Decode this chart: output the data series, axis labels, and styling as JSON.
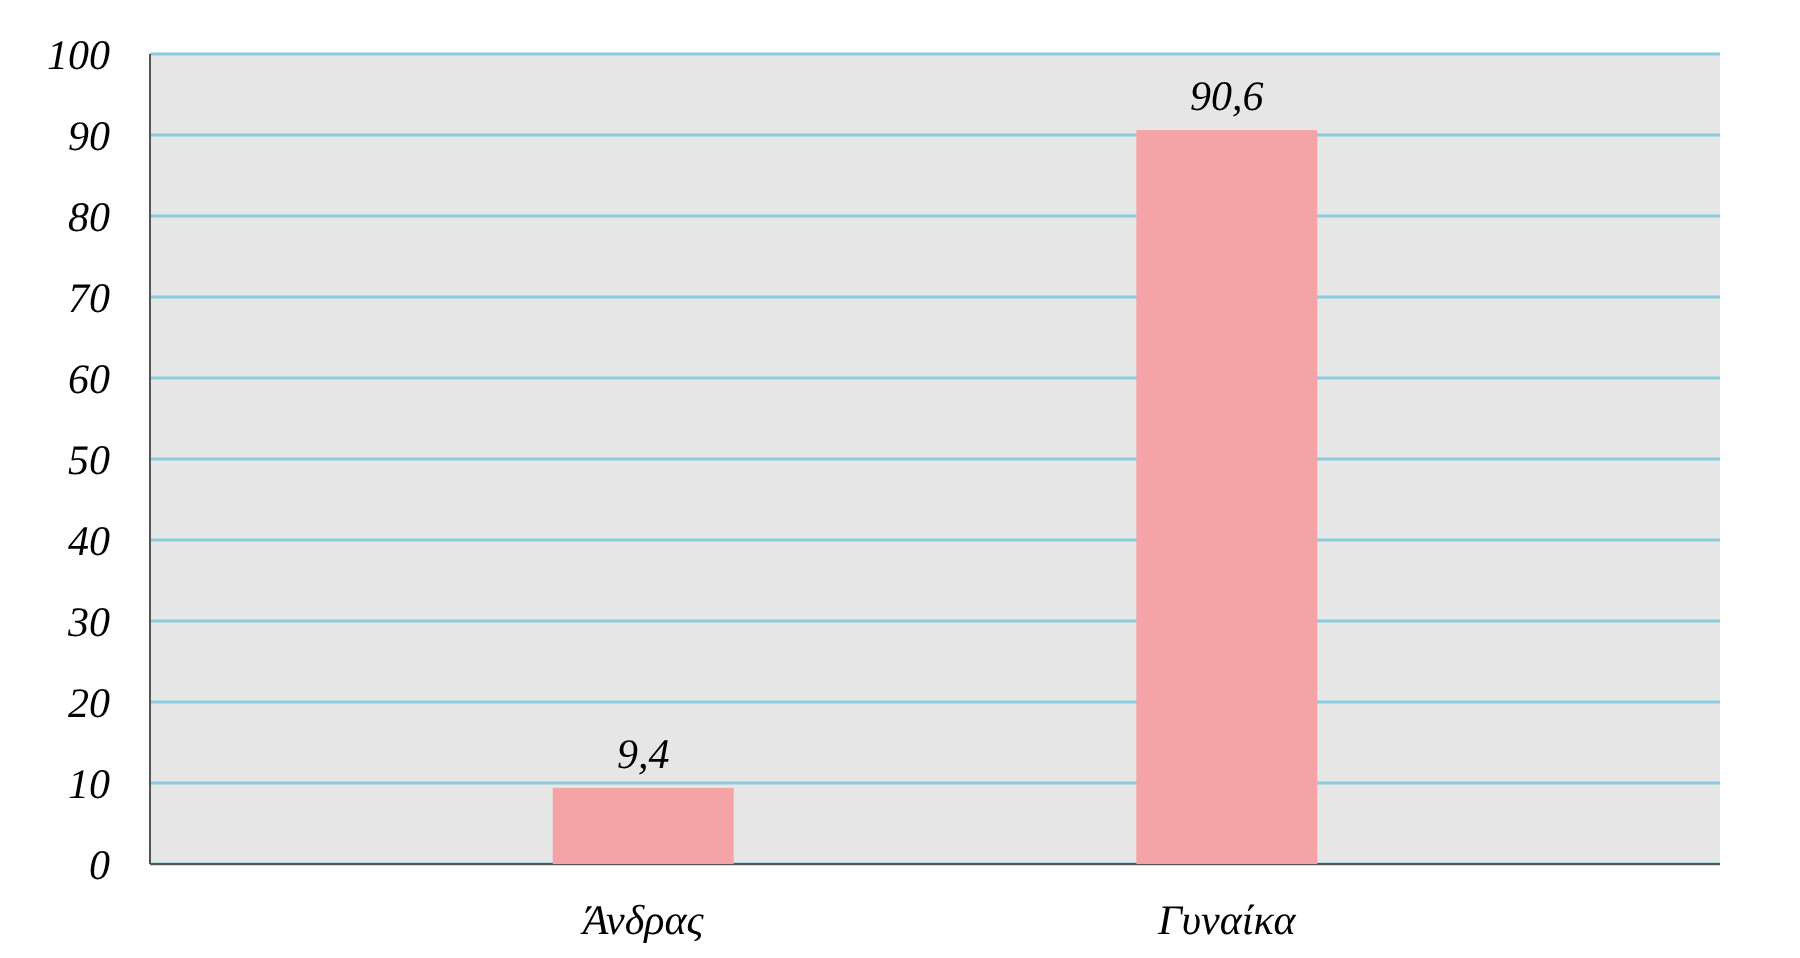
{
  "chart_data": {
    "type": "bar",
    "categories": [
      "Άνδρας",
      "Γυναίκα"
    ],
    "values": [
      9.4,
      90.6
    ],
    "value_labels": [
      "9,4",
      "90,6"
    ],
    "color": "#f4a3a6",
    "ylim": [
      0,
      100
    ],
    "yticks": [
      0,
      10,
      20,
      30,
      40,
      50,
      60,
      70,
      80,
      90,
      100
    ],
    "grid": "y"
  }
}
